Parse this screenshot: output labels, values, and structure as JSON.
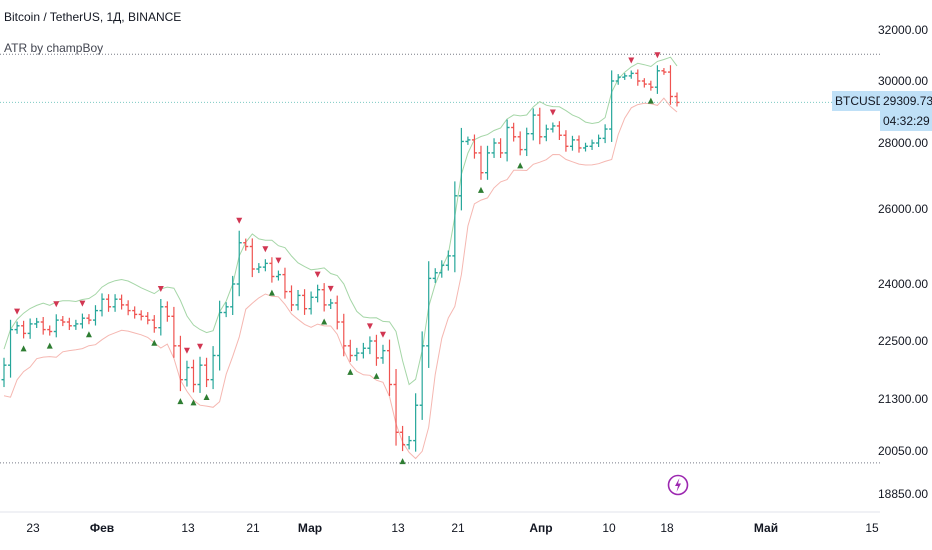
{
  "header": {
    "symbol_line": "Bitcoin / TetherUS, 1Д, BINANCE",
    "indicator_line": "ATR by champBoy"
  },
  "price_tags": {
    "symbol": "BTCUSDT",
    "price": "29309.73",
    "countdown": "04:32:29"
  },
  "colors": {
    "up": "#26a69a",
    "down": "#ef5350",
    "upper_band": "#a5d6a7",
    "lower_band": "#f5b7b1",
    "sell_marker": "#d13652",
    "buy_marker": "#2e7d32",
    "tag_bg": "#bfe0f7"
  },
  "icons": {
    "lightning": "lightning-icon"
  },
  "chart_data": {
    "type": "ohlc",
    "title": "Bitcoin / TetherUS, 1Д, BINANCE",
    "y_ticks": [
      "32000.00",
      "30000.00",
      "28000.00",
      "26000.00",
      "24000.00",
      "22500.00",
      "21300.00",
      "20050.00",
      "18850.00"
    ],
    "y_tick_values": [
      32000,
      30000,
      28000,
      26000,
      24000,
      22500,
      21300,
      20050,
      18850
    ],
    "x_ticks": [
      {
        "label": "23",
        "bold": false
      },
      {
        "label": "Фев",
        "bold": true
      },
      {
        "label": "13",
        "bold": false
      },
      {
        "label": "21",
        "bold": false
      },
      {
        "label": "Мар",
        "bold": true
      },
      {
        "label": "13",
        "bold": false
      },
      {
        "label": "21",
        "bold": false
      },
      {
        "label": "Апр",
        "bold": true
      },
      {
        "label": "10",
        "bold": false
      },
      {
        "label": "18",
        "bold": false
      },
      {
        "label": "Май",
        "bold": true
      },
      {
        "label": "15",
        "bold": false
      }
    ],
    "reference_levels": [
      31050,
      19720
    ],
    "current_price": 29309.73,
    "closes": [
      22000,
      22800,
      22900,
      22700,
      22950,
      23000,
      22800,
      22750,
      23050,
      23000,
      22900,
      22950,
      23100,
      23050,
      23300,
      23600,
      23400,
      23600,
      23450,
      23300,
      23200,
      23150,
      23050,
      22850,
      23400,
      23150,
      22400,
      21700,
      21950,
      21600,
      22000,
      21700,
      22200,
      23250,
      23400,
      24000,
      25100,
      25000,
      24400,
      24450,
      24550,
      24200,
      24250,
      23800,
      23450,
      23700,
      23350,
      23650,
      23850,
      23450,
      23500,
      23000,
      22400,
      22200,
      22250,
      22350,
      22500,
      22150,
      22300,
      21600,
      20500,
      20200,
      20300,
      21150,
      22400,
      24150,
      24300,
      24500,
      24750,
      26400,
      28050,
      28100,
      27700,
      27100,
      27700,
      28000,
      27700,
      28500,
      28200,
      27800,
      28300,
      28900,
      28200,
      28450,
      28550,
      28250,
      27900,
      28100,
      27850,
      27900,
      28000,
      28150,
      28450,
      30000,
      30150,
      30200,
      30300,
      30000,
      29900,
      29800,
      30400,
      30350,
      29500,
      29309
    ]
  }
}
